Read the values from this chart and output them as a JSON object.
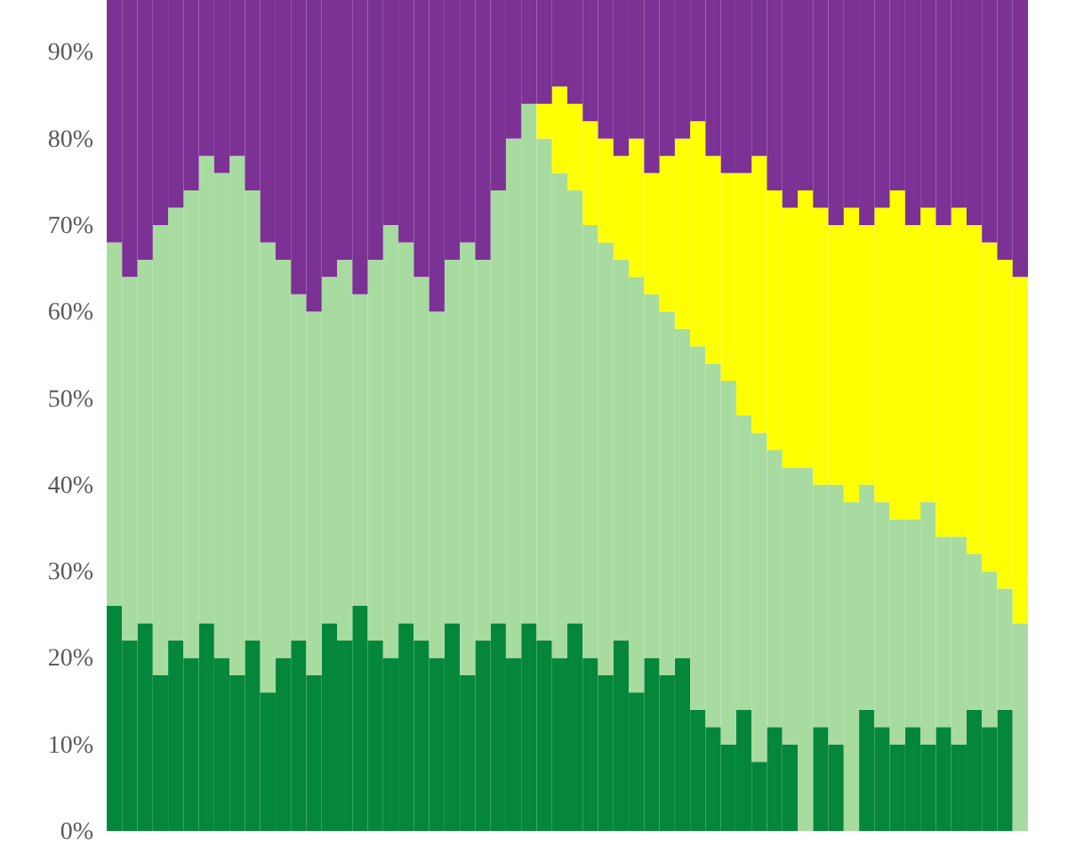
{
  "chart_data": {
    "type": "bar",
    "stacked": true,
    "tick_labels": "y",
    "categories": [
      null,
      null,
      null,
      null,
      null,
      null,
      null,
      null,
      null,
      null,
      null,
      null,
      null,
      null,
      null,
      null,
      null,
      null,
      null,
      null,
      null,
      null,
      null,
      null,
      null,
      null,
      null,
      null,
      null,
      null,
      null,
      null,
      null,
      null,
      null,
      null,
      null,
      null,
      null,
      null,
      null,
      null,
      null,
      null,
      null,
      null,
      null,
      null,
      null,
      null,
      null,
      null,
      null,
      null,
      null,
      null,
      null,
      null,
      null,
      null
    ],
    "ylim": [
      0,
      96
    ],
    "yticks": [
      {
        "value": 0,
        "label": "0%"
      },
      {
        "value": 10,
        "label": "10%"
      },
      {
        "value": 20,
        "label": "20%"
      },
      {
        "value": 30,
        "label": "30%"
      },
      {
        "value": 40,
        "label": "40%"
      },
      {
        "value": 50,
        "label": "50%"
      },
      {
        "value": 60,
        "label": "60%"
      },
      {
        "value": 70,
        "label": "70%"
      },
      {
        "value": 80,
        "label": "80%"
      },
      {
        "value": 90,
        "label": "90%"
      }
    ],
    "series": [
      {
        "color": "#04873a",
        "values": [
          26,
          22,
          24,
          18,
          22,
          20,
          24,
          20,
          18,
          22,
          16,
          20,
          22,
          18,
          24,
          22,
          26,
          22,
          20,
          24,
          22,
          20,
          24,
          18,
          22,
          24,
          20,
          24,
          22,
          20,
          24,
          20,
          18,
          22,
          16,
          20,
          18,
          20,
          14,
          12,
          10,
          14,
          8,
          12,
          10,
          0,
          12,
          10,
          0,
          14,
          12,
          10,
          12,
          10,
          12,
          10,
          14,
          12,
          14,
          0
        ]
      },
      {
        "color": "#a8dba0",
        "values": [
          42,
          42,
          42,
          52,
          50,
          54,
          54,
          56,
          60,
          52,
          52,
          46,
          40,
          42,
          40,
          44,
          36,
          44,
          50,
          44,
          42,
          40,
          42,
          50,
          44,
          50,
          60,
          60,
          58,
          56,
          50,
          50,
          50,
          44,
          48,
          42,
          42,
          38,
          42,
          42,
          42,
          34,
          38,
          32,
          32,
          42,
          28,
          30,
          38,
          26,
          26,
          26,
          24,
          28,
          22,
          24,
          18,
          18,
          14,
          24
        ]
      },
      {
        "color": "#ffff00",
        "values": [
          0,
          0,
          0,
          0,
          0,
          0,
          0,
          0,
          0,
          0,
          0,
          0,
          0,
          0,
          0,
          0,
          0,
          0,
          0,
          0,
          0,
          0,
          0,
          0,
          0,
          0,
          0,
          0,
          4,
          10,
          10,
          12,
          12,
          12,
          16,
          14,
          18,
          22,
          26,
          24,
          24,
          28,
          32,
          30,
          30,
          32,
          32,
          30,
          34,
          30,
          34,
          38,
          34,
          34,
          36,
          38,
          38,
          38,
          38,
          40
        ]
      },
      {
        "color": "#7b3294",
        "values": [
          28,
          32,
          30,
          26,
          24,
          22,
          18,
          20,
          18,
          22,
          28,
          30,
          34,
          36,
          32,
          30,
          34,
          30,
          26,
          28,
          32,
          36,
          30,
          28,
          30,
          22,
          16,
          12,
          12,
          10,
          12,
          14,
          16,
          18,
          16,
          20,
          18,
          16,
          14,
          18,
          20,
          20,
          18,
          22,
          24,
          22,
          24,
          26,
          24,
          26,
          24,
          22,
          26,
          24,
          26,
          24,
          26,
          28,
          30,
          32
        ]
      }
    ]
  }
}
